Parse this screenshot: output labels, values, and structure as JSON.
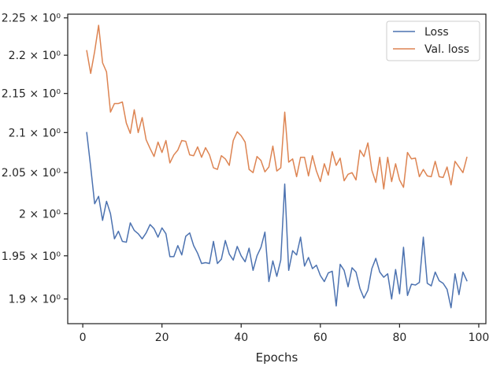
{
  "chart_data": {
    "type": "line",
    "xlabel": "Epochs",
    "ylabel": "",
    "xlim": [
      -3.8,
      101.8
    ],
    "ylim": [
      1.872,
      2.255
    ],
    "y_scale": "log",
    "grid": false,
    "legend_position": "top-right",
    "x_ticks": [
      0,
      20,
      40,
      60,
      80,
      100
    ],
    "x_tick_labels": [
      "0",
      "20",
      "40",
      "60",
      "80",
      "100"
    ],
    "y_ticks": [
      1.9,
      1.95,
      2.0,
      2.05,
      2.1,
      2.15,
      2.2,
      2.25
    ],
    "y_tick_labels": [
      "1.9 × 10⁰",
      "1.95 × 10⁰",
      "2 × 10⁰",
      "2.05 × 10⁰",
      "2.1 × 10⁰",
      "2.15 × 10⁰",
      "2.2 × 10⁰",
      "2.25 × 10⁰"
    ],
    "x": [
      1,
      2,
      3,
      4,
      5,
      6,
      7,
      8,
      9,
      10,
      11,
      12,
      13,
      14,
      15,
      16,
      17,
      18,
      19,
      20,
      21,
      22,
      23,
      24,
      25,
      26,
      27,
      28,
      29,
      30,
      31,
      32,
      33,
      34,
      35,
      36,
      37,
      38,
      39,
      40,
      41,
      42,
      43,
      44,
      45,
      46,
      47,
      48,
      49,
      50,
      51,
      52,
      53,
      54,
      55,
      56,
      57,
      58,
      59,
      60,
      61,
      62,
      63,
      64,
      65,
      66,
      67,
      68,
      69,
      70,
      71,
      72,
      73,
      74,
      75,
      76,
      77,
      78,
      79,
      80,
      81,
      82,
      83,
      84,
      85,
      86,
      87,
      88,
      89,
      90,
      91,
      92,
      93,
      94,
      95,
      96,
      97
    ],
    "series": [
      {
        "name": "Loss",
        "color": "#4c72b0",
        "values": [
          2.1,
          2.057,
          2.012,
          2.021,
          1.992,
          2.015,
          2.0,
          1.97,
          1.979,
          1.967,
          1.966,
          1.989,
          1.98,
          1.976,
          1.97,
          1.977,
          1.987,
          1.982,
          1.972,
          1.983,
          1.976,
          1.949,
          1.949,
          1.962,
          1.951,
          1.973,
          1.977,
          1.962,
          1.953,
          1.941,
          1.942,
          1.941,
          1.967,
          1.941,
          1.946,
          1.968,
          1.952,
          1.945,
          1.961,
          1.95,
          1.943,
          1.959,
          1.933,
          1.95,
          1.96,
          1.978,
          1.92,
          1.944,
          1.926,
          1.945,
          2.036,
          1.933,
          1.956,
          1.951,
          1.972,
          1.938,
          1.948,
          1.935,
          1.939,
          1.927,
          1.92,
          1.93,
          1.932,
          1.892,
          1.94,
          1.933,
          1.914,
          1.936,
          1.931,
          1.912,
          1.901,
          1.91,
          1.935,
          1.947,
          1.931,
          1.925,
          1.929,
          1.9,
          1.934,
          1.906,
          1.96,
          1.904,
          1.917,
          1.916,
          1.919,
          1.972,
          1.918,
          1.915,
          1.931,
          1.921,
          1.918,
          1.911,
          1.89,
          1.929,
          1.905,
          1.931,
          1.921
        ]
      },
      {
        "name": "Val. loss",
        "color": "#dd8452",
        "values": [
          2.206,
          2.176,
          2.205,
          2.24,
          2.19,
          2.178,
          2.126,
          2.137,
          2.137,
          2.139,
          2.112,
          2.099,
          2.129,
          2.1,
          2.119,
          2.091,
          2.08,
          2.07,
          2.088,
          2.075,
          2.09,
          2.062,
          2.072,
          2.078,
          2.09,
          2.089,
          2.072,
          2.071,
          2.082,
          2.069,
          2.081,
          2.072,
          2.056,
          2.054,
          2.071,
          2.067,
          2.059,
          2.09,
          2.101,
          2.096,
          2.088,
          2.054,
          2.05,
          2.07,
          2.065,
          2.051,
          2.057,
          2.083,
          2.052,
          2.056,
          2.126,
          2.063,
          2.067,
          2.045,
          2.069,
          2.069,
          2.046,
          2.071,
          2.052,
          2.039,
          2.061,
          2.047,
          2.076,
          2.059,
          2.068,
          2.04,
          2.048,
          2.05,
          2.041,
          2.078,
          2.07,
          2.087,
          2.053,
          2.038,
          2.069,
          2.03,
          2.069,
          2.039,
          2.061,
          2.041,
          2.032,
          2.075,
          2.067,
          2.068,
          2.045,
          2.054,
          2.046,
          2.045,
          2.064,
          2.045,
          2.044,
          2.057,
          2.035,
          2.064,
          2.057,
          2.05,
          2.069
        ]
      }
    ]
  }
}
